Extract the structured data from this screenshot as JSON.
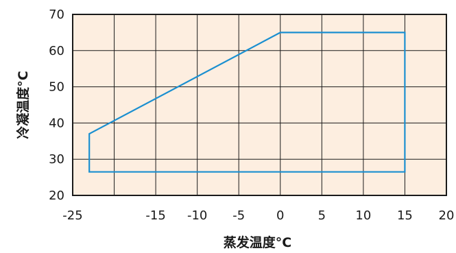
{
  "chart_data": {
    "type": "line",
    "title": "",
    "xlabel": "蒸发温度°C",
    "ylabel": "冷凝温度°C",
    "xlim": [
      -25,
      20
    ],
    "ylim": [
      20,
      70
    ],
    "x_ticks": [
      -25,
      -20,
      -15,
      -10,
      -5,
      0,
      5,
      10,
      15,
      20
    ],
    "x_tick_labels": [
      "-25",
      "",
      "-15",
      "-10",
      "-5",
      "0",
      "5",
      "10",
      "15",
      "20"
    ],
    "y_ticks": [
      20,
      30,
      40,
      50,
      60,
      70
    ],
    "y_tick_labels": [
      "20",
      "30",
      "40",
      "50",
      "60",
      "70"
    ],
    "grid": true,
    "series": [
      {
        "closed": true,
        "points": [
          {
            "x": -23,
            "y": 26.5
          },
          {
            "x": -23,
            "y": 37
          },
          {
            "x": 0,
            "y": 65
          },
          {
            "x": 15,
            "y": 65
          },
          {
            "x": 15,
            "y": 26.5
          }
        ]
      }
    ],
    "colors": {
      "plot_background": "#fdeee0",
      "grid": "#1a1a1a",
      "series_line": "#1a8fd0",
      "text": "#1a1a1a"
    }
  }
}
